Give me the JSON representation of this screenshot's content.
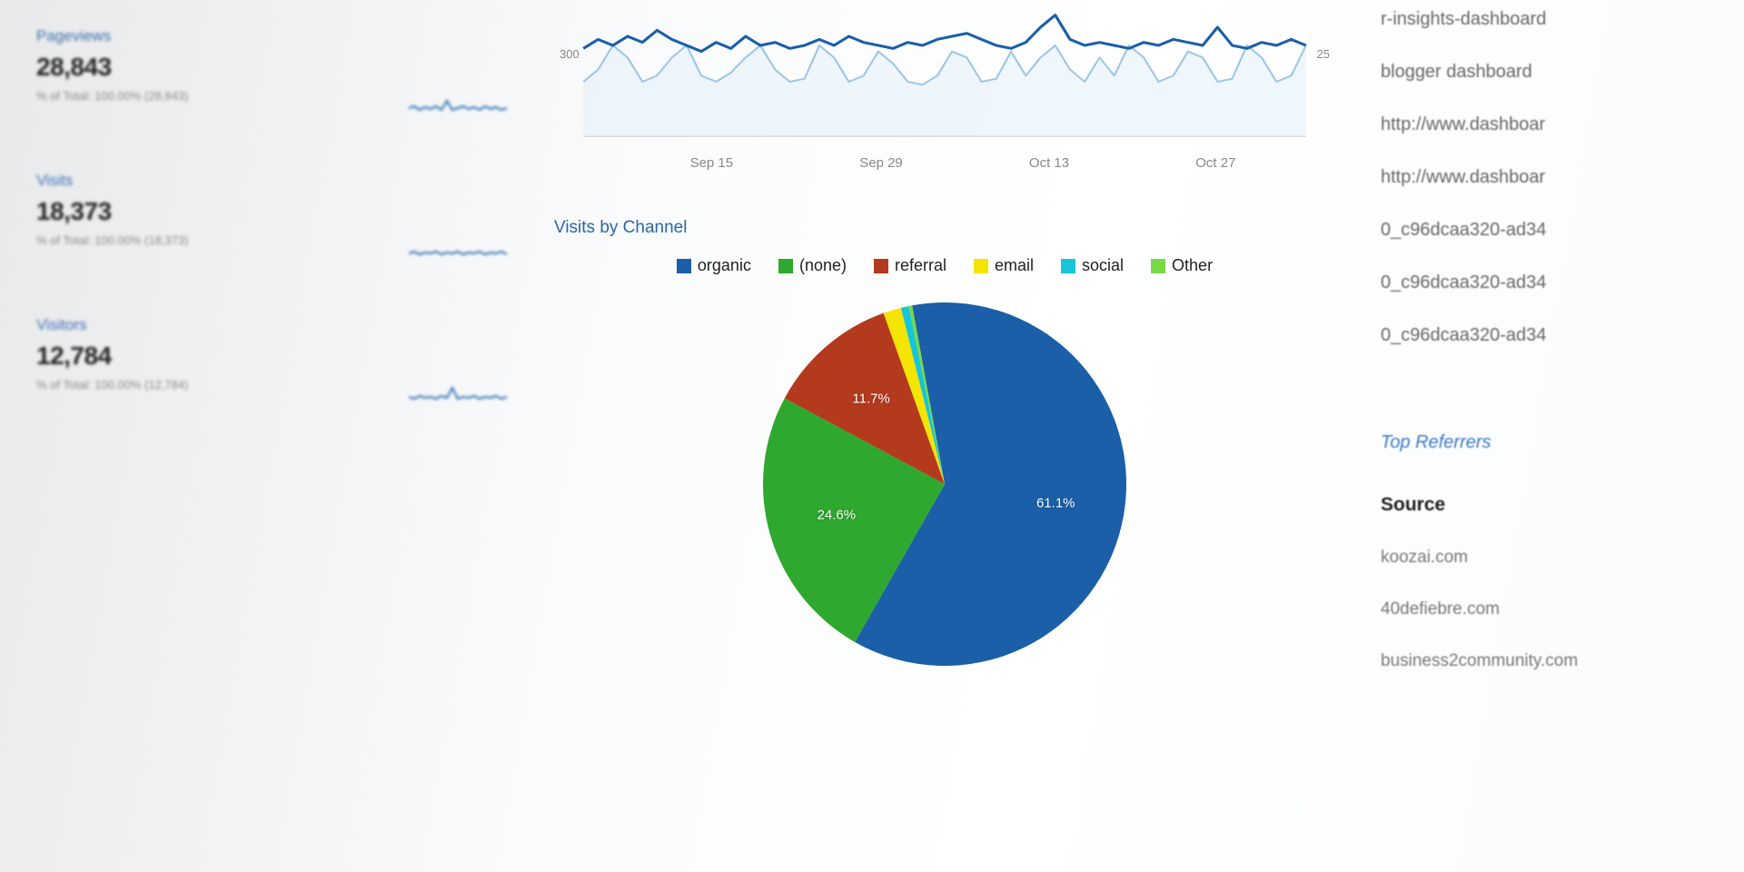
{
  "left": {
    "cards": [
      {
        "label": "Pageviews",
        "value": "28,843",
        "sub": "% of Total: 100.00% (28,843)"
      },
      {
        "label": "Visits",
        "value": "18,373",
        "sub": "% of Total: 100.00% (18,373)"
      },
      {
        "label": "Visitors",
        "value": "12,784",
        "sub": "% of Total: 100.00% (12,784)"
      }
    ],
    "sparkline_color": "#2a6fb5"
  },
  "timeline": {
    "type": "line",
    "y_left_label": "300",
    "y_right_label": "25",
    "x_ticks": [
      "Sep 15",
      "Sep 29",
      "Oct 13",
      "Oct 27"
    ],
    "series": [
      {
        "name": "primary",
        "color": "#1a5fa8",
        "stroke_width": 3,
        "fill": "none",
        "points": [
          290,
          320,
          300,
          330,
          310,
          350,
          320,
          300,
          280,
          310,
          290,
          330,
          300,
          310,
          290,
          300,
          320,
          300,
          330,
          310,
          300,
          290,
          310,
          300,
          320,
          330,
          340,
          320,
          300,
          290,
          310,
          360,
          400,
          320,
          300,
          310,
          300,
          290,
          310,
          300,
          320,
          310,
          300,
          360,
          300,
          290,
          310,
          300,
          320,
          300
        ]
      },
      {
        "name": "secondary",
        "color": "#9ec6e8",
        "stroke_width": 2,
        "fill": "#e5f0fa",
        "points": [
          180,
          220,
          300,
          260,
          180,
          200,
          260,
          300,
          200,
          180,
          210,
          260,
          300,
          220,
          180,
          190,
          300,
          260,
          180,
          200,
          280,
          240,
          180,
          170,
          200,
          280,
          260,
          180,
          190,
          280,
          200,
          260,
          300,
          220,
          180,
          260,
          200,
          300,
          260,
          180,
          200,
          280,
          260,
          180,
          190,
          300,
          260,
          180,
          200,
          300
        ]
      }
    ],
    "y_domain": [
      0,
      420
    ],
    "axis_color": "#bbb",
    "background_color": "#ffffff"
  },
  "visits_by_channel": {
    "title": "Visits by Channel",
    "type": "pie",
    "slices": [
      {
        "label": "organic",
        "value": 61.1,
        "color": "#1a5fa8"
      },
      {
        "label": "(none)",
        "value": 24.6,
        "color": "#2fa82f"
      },
      {
        "label": "referral",
        "value": 11.7,
        "color": "#b43a1e"
      },
      {
        "label": "email",
        "value": 1.6,
        "color": "#f5e400"
      },
      {
        "label": "social",
        "value": 0.7,
        "color": "#17c4d8"
      },
      {
        "label": "Other",
        "value": 0.3,
        "color": "#78d845"
      }
    ],
    "label_min_pct": 5,
    "label_color": "#ffffff",
    "label_fontsize": 15,
    "legend_fontsize": 18
  },
  "right": {
    "search_terms": [
      "r-insights-dashboard",
      "blogger dashboard",
      "http://www.dashboar",
      "http://www.dashboar",
      "0_c96dcaa320-ad34",
      "0_c96dcaa320-ad34",
      "0_c96dcaa320-ad34"
    ],
    "top_referrers_title": "Top Referrers",
    "source_header": "Source",
    "referrers": [
      "koozai.com",
      "40defiebre.com",
      "business2community.com"
    ]
  }
}
